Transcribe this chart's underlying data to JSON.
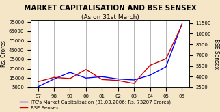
{
  "title": "MARKET CAPITALISATION AND BSE SENSEX",
  "subtitle": "(As on 31st March)",
  "years": [
    "97",
    "98",
    "99",
    "00",
    "01",
    "02",
    "03",
    "04",
    "05",
    "06"
  ],
  "market_cap": [
    5700,
    14000,
    21000,
    15000,
    16500,
    14000,
    13000,
    18000,
    27000,
    73207
  ],
  "bse_sensex": [
    3300,
    3900,
    3740,
    5001,
    3604,
    3469,
    3049,
    5591,
    6493,
    11280
  ],
  "left_yticks": [
    5000,
    15000,
    25000,
    35000,
    45000,
    55000,
    65000,
    75000
  ],
  "left_ylim": [
    5000,
    77000
  ],
  "right_yticks": [
    2500,
    4000,
    5500,
    7000,
    8500,
    10000,
    11500
  ],
  "right_ylim": [
    2500,
    11900
  ],
  "ylabel_left": "Rs. Crores",
  "ylabel_right": "BSE Sensex",
  "legend_label_blue": "ITC's Market Capitalisation (31.03.2006: Rs. 73207 Crores)",
  "legend_label_red": "BSE Sensex",
  "line_color_blue": "#0000FF",
  "line_color_red": "#CC0000",
  "bg_color": "#F5E6C8",
  "plot_bg_color": "#FFFFFF",
  "title_fontsize": 7.5,
  "subtitle_fontsize": 6.5,
  "label_fontsize": 5.5,
  "tick_fontsize": 5.0,
  "legend_fontsize": 5.0
}
